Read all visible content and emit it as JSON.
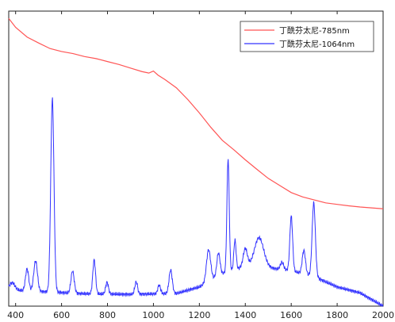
{
  "chart_data": {
    "type": "line",
    "title": "",
    "xlabel": "",
    "ylabel": "",
    "xlim": [
      370,
      2000
    ],
    "ylim": [
      0,
      1
    ],
    "x_ticks": [
      400,
      600,
      800,
      1000,
      1200,
      1400,
      1600,
      1800,
      2000
    ],
    "x_tick_labels": [
      "400",
      "600",
      "800",
      "1000",
      "1200",
      "1400",
      "1600",
      "1800",
      "2000"
    ],
    "grid": false,
    "legend_position": "top-right",
    "series": [
      {
        "name": "丁酰芬太尼-785nm",
        "color": "#ff5555",
        "x": [
          370,
          400,
          450,
          500,
          550,
          600,
          650,
          700,
          750,
          800,
          850,
          900,
          950,
          980,
          1000,
          1020,
          1050,
          1100,
          1150,
          1200,
          1250,
          1300,
          1350,
          1400,
          1450,
          1500,
          1550,
          1600,
          1650,
          1700,
          1750,
          1800,
          1850,
          1900,
          1950,
          2000
        ],
        "y": [
          0.975,
          0.945,
          0.912,
          0.892,
          0.873,
          0.863,
          0.856,
          0.846,
          0.839,
          0.829,
          0.819,
          0.807,
          0.795,
          0.79,
          0.797,
          0.783,
          0.768,
          0.74,
          0.7,
          0.655,
          0.606,
          0.562,
          0.53,
          0.496,
          0.464,
          0.433,
          0.409,
          0.385,
          0.37,
          0.36,
          0.35,
          0.345,
          0.34,
          0.336,
          0.333,
          0.33
        ]
      },
      {
        "name": "丁酰芬太尼-1064nm",
        "color": "#3333ff",
        "baseline": [
          [
            370,
            0.055
          ],
          [
            500,
            0.05
          ],
          [
            700,
            0.042
          ],
          [
            900,
            0.04
          ],
          [
            1100,
            0.043
          ],
          [
            1200,
            0.065
          ],
          [
            1300,
            0.11
          ],
          [
            1400,
            0.135
          ],
          [
            1500,
            0.13
          ],
          [
            1600,
            0.12
          ],
          [
            1700,
            0.1
          ],
          [
            1800,
            0.065
          ],
          [
            1900,
            0.045
          ],
          [
            2000,
            0.0
          ]
        ],
        "peaks": [
          {
            "x": 385,
            "height": 0.025,
            "width": 12
          },
          {
            "x": 450,
            "height": 0.075,
            "width": 7
          },
          {
            "x": 487,
            "height": 0.103,
            "width": 8
          },
          {
            "x": 560,
            "height": 0.655,
            "width": 7
          },
          {
            "x": 648,
            "height": 0.075,
            "width": 7
          },
          {
            "x": 742,
            "height": 0.115,
            "width": 6
          },
          {
            "x": 798,
            "height": 0.04,
            "width": 6
          },
          {
            "x": 925,
            "height": 0.042,
            "width": 6
          },
          {
            "x": 1025,
            "height": 0.03,
            "width": 6
          },
          {
            "x": 1075,
            "height": 0.08,
            "width": 7
          },
          {
            "x": 1240,
            "height": 0.108,
            "width": 9
          },
          {
            "x": 1283,
            "height": 0.078,
            "width": 7
          },
          {
            "x": 1325,
            "height": 0.384,
            "width": 5
          },
          {
            "x": 1355,
            "height": 0.1,
            "width": 5
          },
          {
            "x": 1400,
            "height": 0.06,
            "width": 9
          },
          {
            "x": 1460,
            "height": 0.1,
            "width": 20
          },
          {
            "x": 1560,
            "height": 0.025,
            "width": 7
          },
          {
            "x": 1600,
            "height": 0.185,
            "width": 6
          },
          {
            "x": 1655,
            "height": 0.08,
            "width": 7
          },
          {
            "x": 1698,
            "height": 0.25,
            "width": 7
          }
        ]
      }
    ]
  }
}
